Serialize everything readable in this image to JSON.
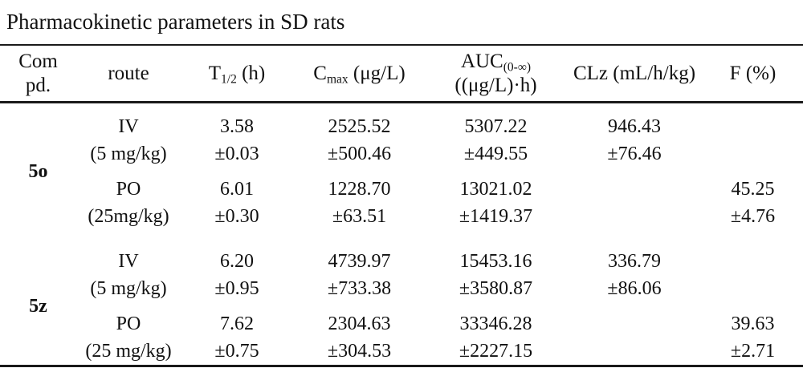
{
  "title": "Pharmacokinetic parameters in SD rats",
  "colors": {
    "text": "#111111",
    "background": "#ffffff",
    "rule": "#1a1a1a"
  },
  "table": {
    "headers": {
      "compound_line1": "Com",
      "compound_line2": "pd.",
      "route": "route",
      "t_half_base": "T",
      "t_half_sub": "1/2",
      "t_half_unit": " (h)",
      "cmax_base": "C",
      "cmax_sub": "max",
      "cmax_unit": " (μg/L)",
      "auc_base": "AUC",
      "auc_sub": "(0-∞)",
      "auc_unit": "((μg/L)·h)",
      "clz": "CLz (mL/h/kg)",
      "f": "F (%)"
    },
    "groups": [
      {
        "compound": "5o",
        "rows": [
          {
            "route": "IV",
            "dose": "(5 mg/kg)",
            "t_half": "3.58",
            "t_half_sd": "±0.03",
            "cmax": "2525.52",
            "cmax_sd": "±500.46",
            "auc": "5307.22",
            "auc_sd": "±449.55",
            "clz": "946.43",
            "clz_sd": "±76.46",
            "f": "",
            "f_sd": ""
          },
          {
            "route": "PO",
            "dose": "(25mg/kg)",
            "t_half": "6.01",
            "t_half_sd": "±0.30",
            "cmax": "1228.70",
            "cmax_sd": "±63.51",
            "auc": "13021.02",
            "auc_sd": "±1419.37",
            "clz": "",
            "clz_sd": "",
            "f": "45.25",
            "f_sd": "±4.76"
          }
        ]
      },
      {
        "compound": "5z",
        "rows": [
          {
            "route": "IV",
            "dose": "(5 mg/kg)",
            "t_half": "6.20",
            "t_half_sd": "±0.95",
            "cmax": "4739.97",
            "cmax_sd": "±733.38",
            "auc": "15453.16",
            "auc_sd": "±3580.87",
            "clz": "336.79",
            "clz_sd": "±86.06",
            "f": "",
            "f_sd": ""
          },
          {
            "route": "PO",
            "dose": "(25 mg/kg)",
            "t_half": "7.62",
            "t_half_sd": "±0.75",
            "cmax": "2304.63",
            "cmax_sd": "±304.53",
            "auc": "33346.28",
            "auc_sd": "±2227.15",
            "clz": "",
            "clz_sd": "",
            "f": "39.63",
            "f_sd": "±2.71"
          }
        ]
      }
    ]
  }
}
